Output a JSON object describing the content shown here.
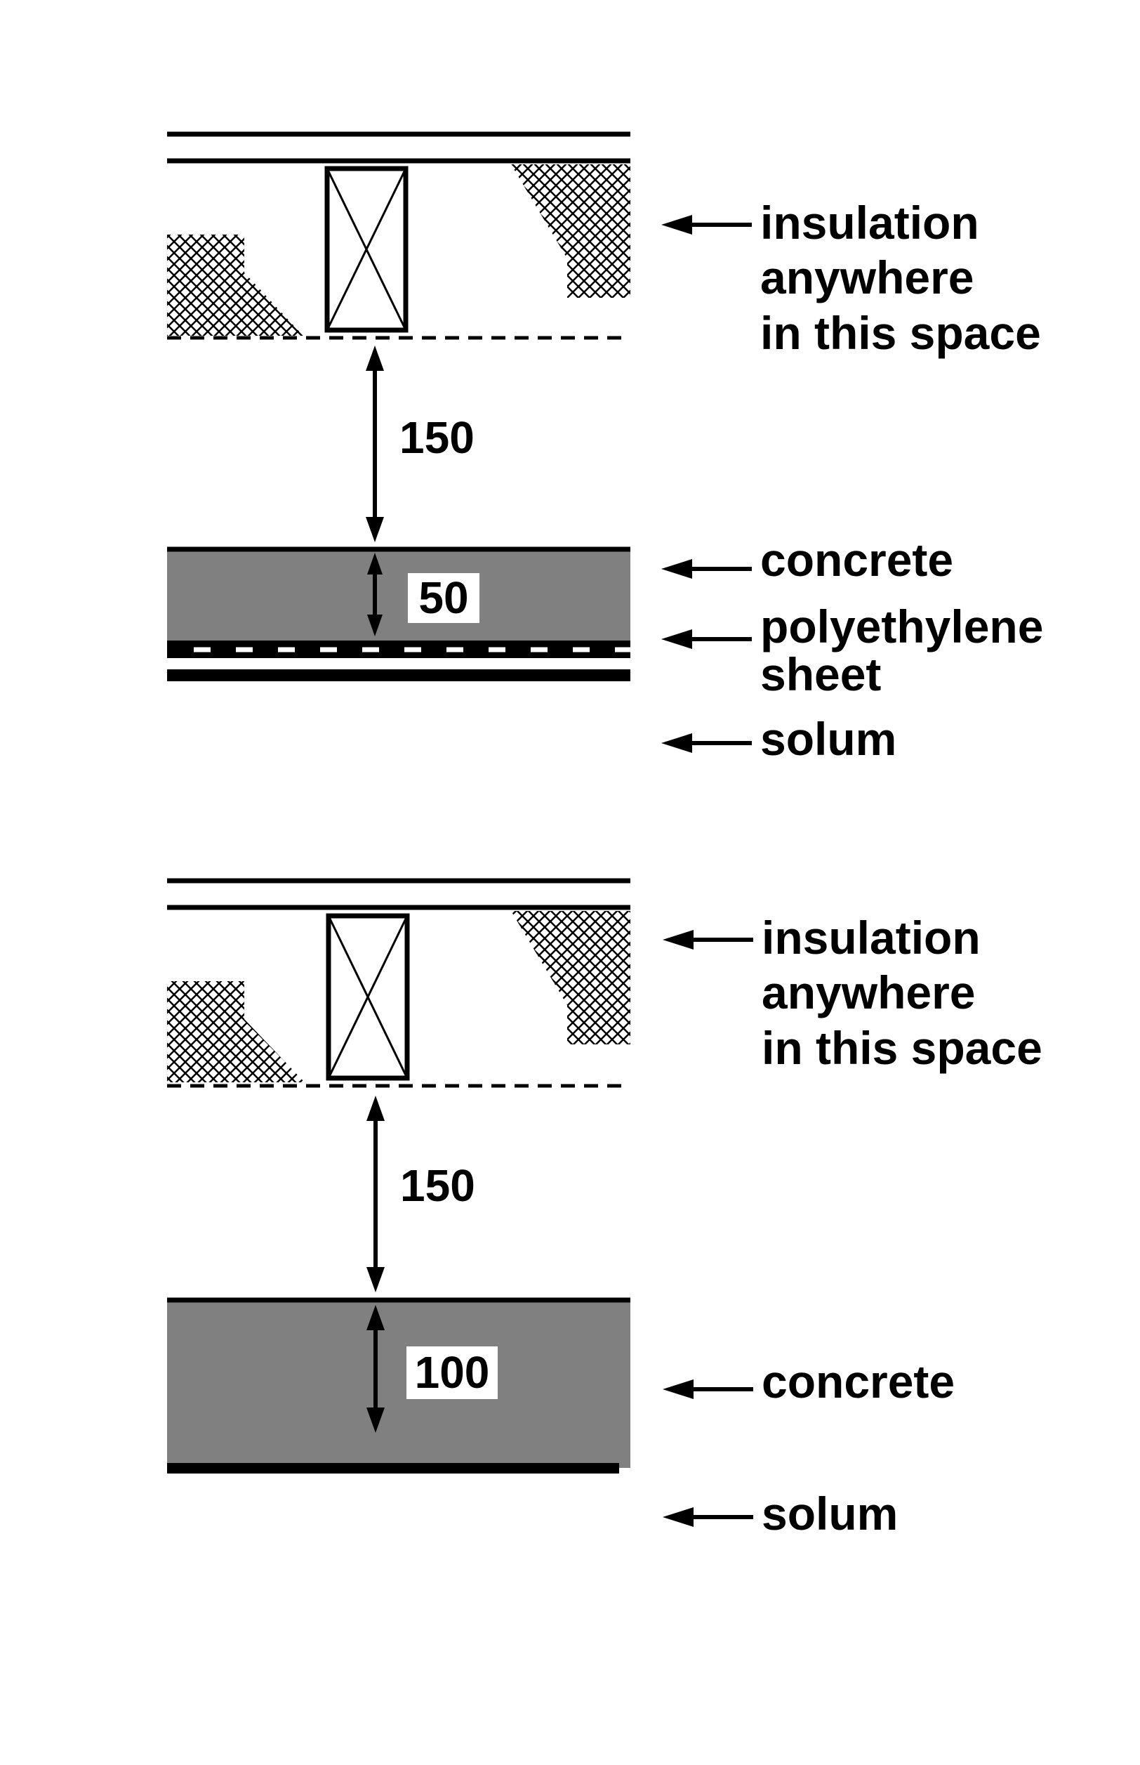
{
  "sections": [
    {
      "insulation_label": [
        "insulation",
        "anywhere",
        "in this space"
      ],
      "gap_value": "150",
      "slab_value": "50",
      "concrete_label": "concrete",
      "membrane_label": [
        "polyethylene",
        "sheet"
      ],
      "solum_label": "solum"
    },
    {
      "insulation_label": [
        "insulation",
        "anywhere",
        "in this space"
      ],
      "gap_value": "150",
      "slab_value": "100",
      "concrete_label": "concrete",
      "solum_label": "solum"
    }
  ],
  "colors": {
    "concrete": "#808080",
    "line": "#000000",
    "background": "#ffffff"
  }
}
